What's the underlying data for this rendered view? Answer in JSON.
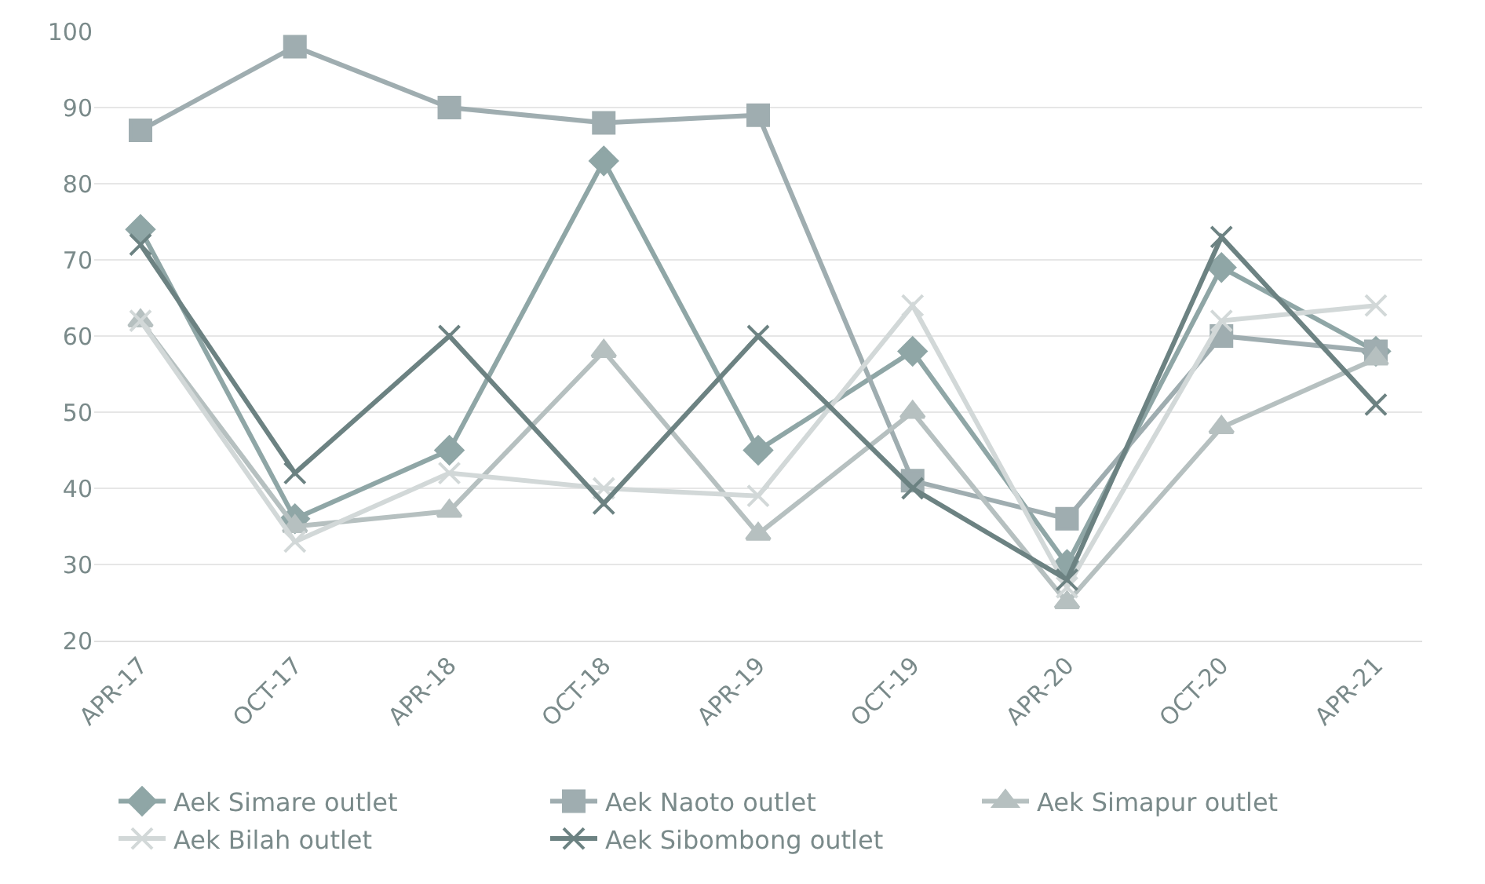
{
  "chart_data": {
    "type": "line",
    "categories": [
      "APR-17",
      "OCT-17",
      "APR-18",
      "OCT-18",
      "APR-19",
      "OCT-19",
      "APR-20",
      "OCT-20",
      "APR-21"
    ],
    "series": [
      {
        "name": "Aek Simare outlet",
        "color": "#8fa6a6",
        "marker": "diamond",
        "values": [
          74,
          36,
          45,
          83,
          45,
          58,
          30,
          69,
          58
        ]
      },
      {
        "name": "Aek Naoto outlet",
        "color": "#9fadb0",
        "marker": "square",
        "values": [
          87,
          98,
          90,
          88,
          89,
          41,
          36,
          60,
          58
        ]
      },
      {
        "name": "Aek Simapur outlet",
        "color": "#b6c0c0",
        "marker": "triangle",
        "values": [
          62,
          35,
          37,
          58,
          34,
          50,
          25,
          48,
          57
        ]
      },
      {
        "name": "Aek Bilah outlet",
        "color": "#d2d8d8",
        "marker": "cross",
        "values": [
          62,
          33,
          42,
          40,
          39,
          64,
          27,
          62,
          64
        ]
      },
      {
        "name": "Aek Sibombong outlet",
        "color": "#6c8282",
        "marker": "cross",
        "values": [
          72,
          42,
          60,
          38,
          60,
          40,
          28,
          73,
          51
        ]
      }
    ],
    "ylim": [
      20,
      100
    ],
    "yticks": [
      20,
      30,
      40,
      50,
      60,
      70,
      80,
      90,
      100
    ],
    "grid": "y",
    "legend": "bottom"
  }
}
